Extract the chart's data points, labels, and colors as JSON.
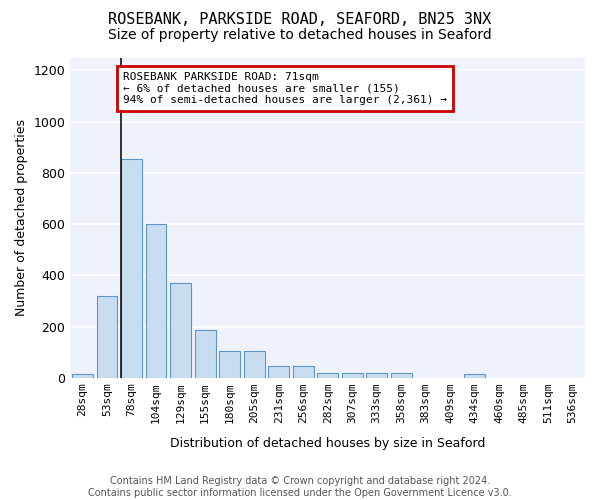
{
  "title": "ROSEBANK, PARKSIDE ROAD, SEAFORD, BN25 3NX",
  "subtitle": "Size of property relative to detached houses in Seaford",
  "xlabel": "Distribution of detached houses by size in Seaford",
  "ylabel": "Number of detached properties",
  "bin_labels": [
    "28sqm",
    "53sqm",
    "78sqm",
    "104sqm",
    "129sqm",
    "155sqm",
    "180sqm",
    "205sqm",
    "231sqm",
    "256sqm",
    "282sqm",
    "307sqm",
    "333sqm",
    "358sqm",
    "383sqm",
    "409sqm",
    "434sqm",
    "460sqm",
    "485sqm",
    "511sqm",
    "536sqm"
  ],
  "bar_values": [
    15,
    320,
    855,
    600,
    370,
    185,
    105,
    105,
    45,
    45,
    20,
    20,
    20,
    20,
    0,
    0,
    15,
    0,
    0,
    0,
    0
  ],
  "bar_color": "#c9ddf0",
  "bar_edge_color": "#6096c8",
  "ylim": [
    0,
    1250
  ],
  "yticks": [
    0,
    200,
    400,
    600,
    800,
    1000,
    1200
  ],
  "property_bin_index": 2,
  "property_line_color": "#111111",
  "annotation_box_edgecolor": "#cc0000",
  "annotation_text_line1": "ROSEBANK PARKSIDE ROAD: 71sqm",
  "annotation_text_line2": "← 6% of detached houses are smaller (155)",
  "annotation_text_line3": "94% of semi-detached houses are larger (2,361) →",
  "footer_line1": "Contains HM Land Registry data © Crown copyright and database right 2024.",
  "footer_line2": "Contains public sector information licensed under the Open Government Licence v3.0.",
  "plot_bg_color": "#eef2fa",
  "fig_bg_color": "#ffffff",
  "grid_color": "#ffffff",
  "title_fontsize": 11,
  "subtitle_fontsize": 10,
  "annotation_fontsize": 8,
  "footer_fontsize": 7,
  "ylabel_fontsize": 9,
  "xlabel_fontsize": 9,
  "tick_fontsize": 8
}
